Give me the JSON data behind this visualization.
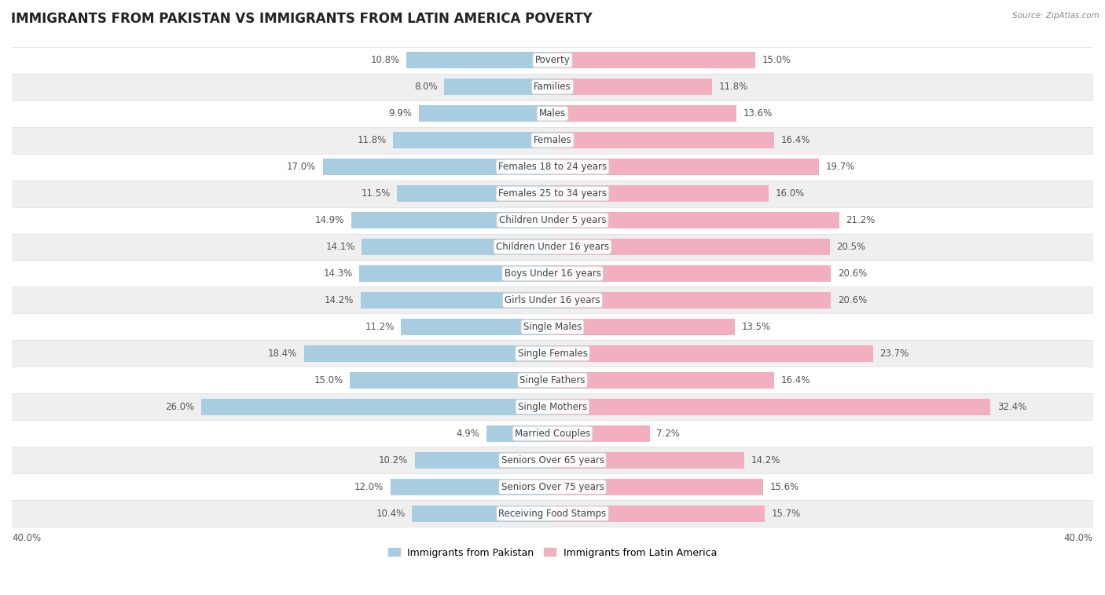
{
  "title": "IMMIGRANTS FROM PAKISTAN VS IMMIGRANTS FROM LATIN AMERICA POVERTY",
  "source": "Source: ZipAtlas.com",
  "categories": [
    "Poverty",
    "Families",
    "Males",
    "Females",
    "Females 18 to 24 years",
    "Females 25 to 34 years",
    "Children Under 5 years",
    "Children Under 16 years",
    "Boys Under 16 years",
    "Girls Under 16 years",
    "Single Males",
    "Single Females",
    "Single Fathers",
    "Single Mothers",
    "Married Couples",
    "Seniors Over 65 years",
    "Seniors Over 75 years",
    "Receiving Food Stamps"
  ],
  "pakistan_values": [
    10.8,
    8.0,
    9.9,
    11.8,
    17.0,
    11.5,
    14.9,
    14.1,
    14.3,
    14.2,
    11.2,
    18.4,
    15.0,
    26.0,
    4.9,
    10.2,
    12.0,
    10.4
  ],
  "latin_values": [
    15.0,
    11.8,
    13.6,
    16.4,
    19.7,
    16.0,
    21.2,
    20.5,
    20.6,
    20.6,
    13.5,
    23.7,
    16.4,
    32.4,
    7.2,
    14.2,
    15.6,
    15.7
  ],
  "pakistan_color": "#a8cce0",
  "latin_color": "#f2afc0",
  "background_color": "#ffffff",
  "row_alt_color": "#efefef",
  "row_base_color": "#ffffff",
  "bar_height": 0.62,
  "xlim": 40.0,
  "legend_label_pakistan": "Immigrants from Pakistan",
  "legend_label_latin": "Immigrants from Latin America",
  "title_fontsize": 12,
  "label_fontsize": 8.5,
  "value_fontsize": 8.5
}
